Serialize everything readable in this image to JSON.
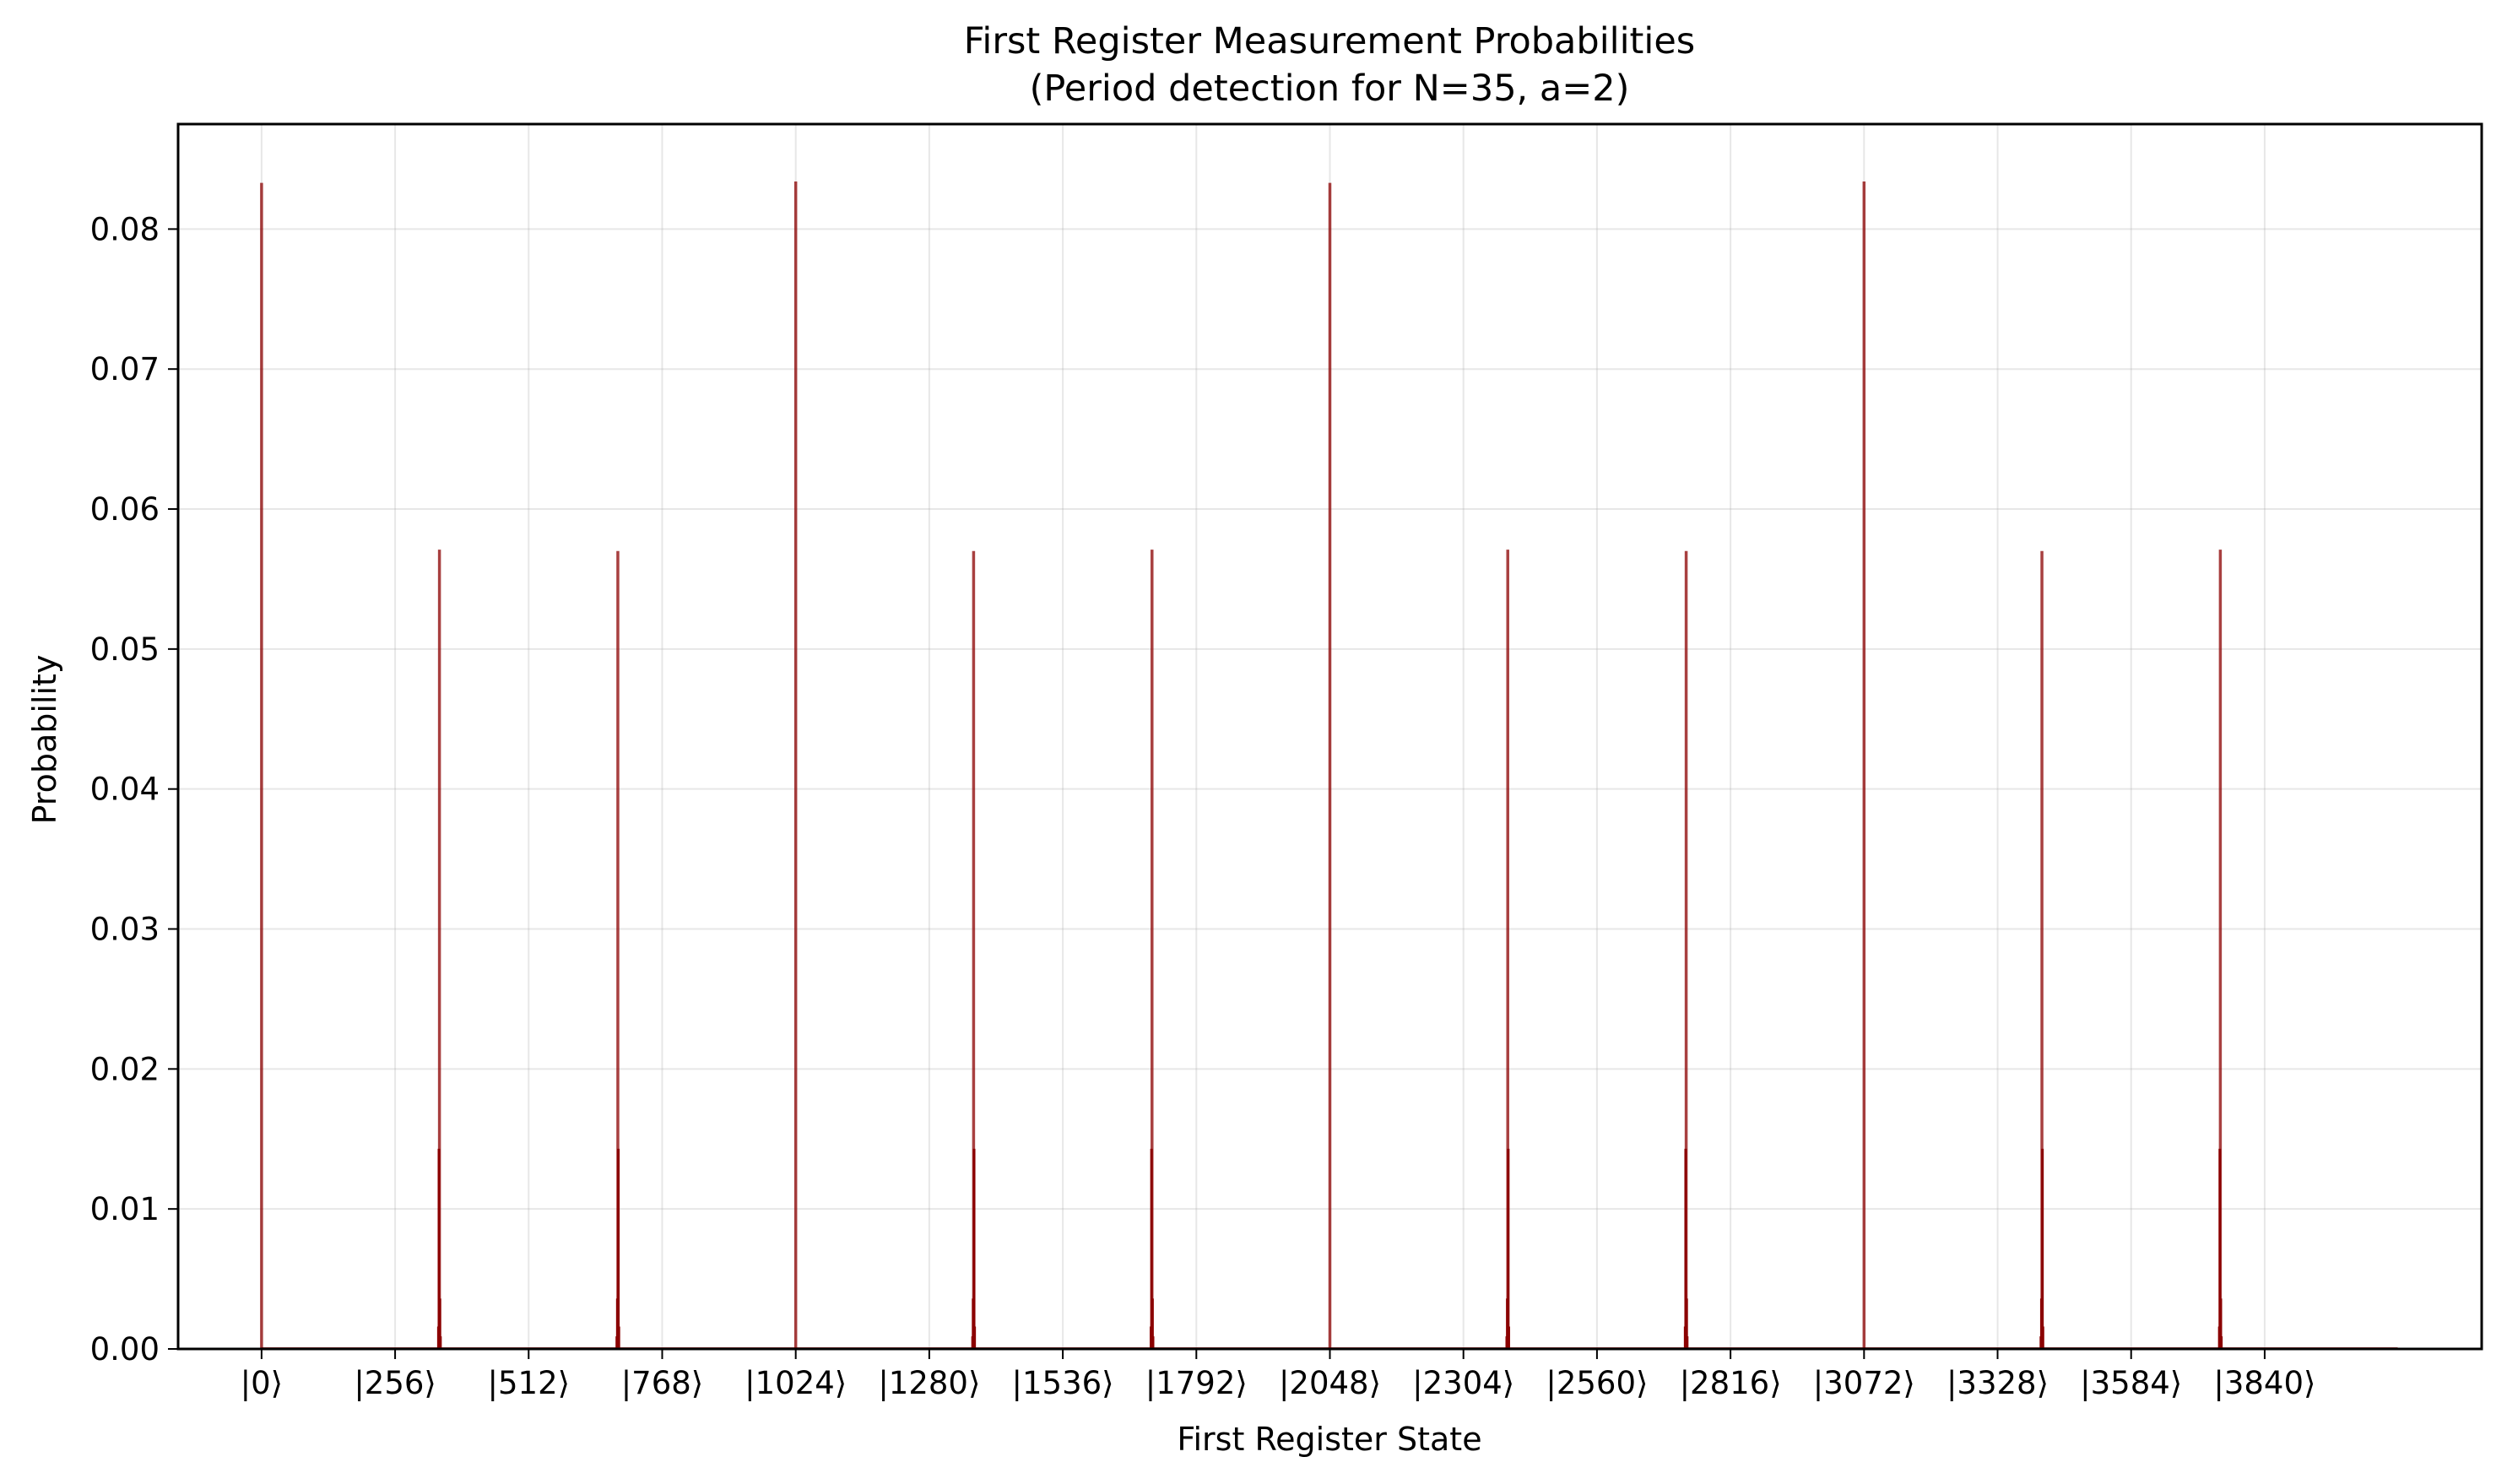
{
  "chart_data": {
    "type": "bar",
    "title": "First Register Measurement Probabilities",
    "subtitle": "(Period detection for N=35, a=2)",
    "xlabel": "First Register State",
    "ylabel": "Probability",
    "xlim": [
      -160,
      4256
    ],
    "ylim": [
      0,
      0.0875
    ],
    "grid": true,
    "legend": "none",
    "bar_color": "#8b0000",
    "x_ticks": [
      0,
      256,
      512,
      768,
      1024,
      1280,
      1536,
      1792,
      2048,
      2304,
      2560,
      2816,
      3072,
      3328,
      3584,
      3840
    ],
    "x_tick_labels": [
      "|0⟩",
      "|256⟩",
      "|512⟩",
      "|768⟩",
      "|1024⟩",
      "|1280⟩",
      "|1536⟩",
      "|1792⟩",
      "|2048⟩",
      "|2304⟩",
      "|2560⟩",
      "|2816⟩",
      "|3072⟩",
      "|3328⟩",
      "|3584⟩",
      "|3840⟩"
    ],
    "y_ticks": [
      0.0,
      0.01,
      0.02,
      0.03,
      0.04,
      0.05,
      0.06,
      0.07,
      0.08
    ],
    "y_tick_labels": [
      "0.00",
      "0.01",
      "0.02",
      "0.03",
      "0.04",
      "0.05",
      "0.06",
      "0.07",
      "0.08"
    ],
    "peaks": [
      {
        "x": 0,
        "value": 0.0833
      },
      {
        "x": 341,
        "value": 0.0571
      },
      {
        "x": 683,
        "value": 0.057
      },
      {
        "x": 1024,
        "value": 0.0834
      },
      {
        "x": 1365,
        "value": 0.057
      },
      {
        "x": 1707,
        "value": 0.0571
      },
      {
        "x": 2048,
        "value": 0.0833
      },
      {
        "x": 2389,
        "value": 0.0571
      },
      {
        "x": 2731,
        "value": 0.057
      },
      {
        "x": 3072,
        "value": 0.0834
      },
      {
        "x": 3413,
        "value": 0.057
      },
      {
        "x": 3755,
        "value": 0.0571
      }
    ],
    "side_lobes": [
      {
        "x": 340,
        "value": 0.0143
      },
      {
        "x": 342,
        "value": 0.0036
      },
      {
        "x": 339,
        "value": 0.0016
      },
      {
        "x": 343,
        "value": 0.0009
      },
      {
        "x": 684,
        "value": 0.0143
      },
      {
        "x": 682,
        "value": 0.0036
      },
      {
        "x": 685,
        "value": 0.0016
      },
      {
        "x": 681,
        "value": 0.0009
      },
      {
        "x": 1366,
        "value": 0.0143
      },
      {
        "x": 1364,
        "value": 0.0036
      },
      {
        "x": 1367,
        "value": 0.0016
      },
      {
        "x": 1363,
        "value": 0.0009
      },
      {
        "x": 1706,
        "value": 0.0143
      },
      {
        "x": 1708,
        "value": 0.0036
      },
      {
        "x": 1705,
        "value": 0.0016
      },
      {
        "x": 1709,
        "value": 0.0009
      },
      {
        "x": 2390,
        "value": 0.0143
      },
      {
        "x": 2388,
        "value": 0.0036
      },
      {
        "x": 2391,
        "value": 0.0016
      },
      {
        "x": 2387,
        "value": 0.0009
      },
      {
        "x": 2730,
        "value": 0.0143
      },
      {
        "x": 2732,
        "value": 0.0036
      },
      {
        "x": 2729,
        "value": 0.0016
      },
      {
        "x": 2733,
        "value": 0.0009
      },
      {
        "x": 3414,
        "value": 0.0143
      },
      {
        "x": 3412,
        "value": 0.0036
      },
      {
        "x": 3415,
        "value": 0.0016
      },
      {
        "x": 3411,
        "value": 0.0009
      },
      {
        "x": 3754,
        "value": 0.0143
      },
      {
        "x": 3756,
        "value": 0.0036
      },
      {
        "x": 3753,
        "value": 0.0016
      },
      {
        "x": 3757,
        "value": 0.0009
      }
    ]
  }
}
